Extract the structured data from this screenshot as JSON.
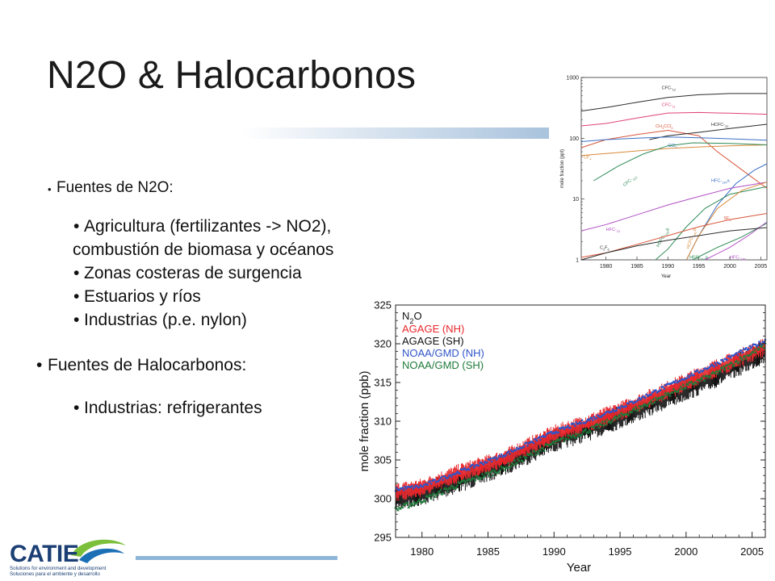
{
  "title": "N2O & Halocarbonos",
  "bullets": {
    "n2o_heading": "Fuentes de N2O:",
    "n2o_items": [
      "Agricultura (fertilizantes -> NO2),",
      "combustión de biomasa y océanos",
      "Zonas costeras de surgencia",
      "Estuarios y ríos",
      "Industrias (p.e. nylon)"
    ],
    "halo_heading": "Fuentes de Halocarbonos:",
    "halo_items": [
      "Industrias: refrigerantes"
    ]
  },
  "logo": {
    "text": "CATIE",
    "tagline_1": "Solutions for environment and development",
    "tagline_2": "Soluciones para el ambiente y desarrollo"
  },
  "chart_data": [
    {
      "type": "line",
      "title": "",
      "xlabel": "Year",
      "ylabel": "mole fraction (ppt)",
      "yscale": "log",
      "xlim": [
        1976,
        2006
      ],
      "ylim": [
        1,
        1000
      ],
      "x_ticks": [
        1980,
        1985,
        1990,
        1995,
        2000,
        2005
      ],
      "y_ticks": [
        1,
        10,
        100,
        1000
      ],
      "series": [
        {
          "name": "CFC-12",
          "color": "#2b2b2b",
          "x": [
            1976,
            1980,
            1985,
            1990,
            1995,
            2000,
            2006
          ],
          "values": [
            280,
            320,
            390,
            470,
            520,
            545,
            545
          ]
        },
        {
          "name": "CFC-11",
          "color": "#e0407a",
          "x": [
            1976,
            1980,
            1985,
            1990,
            1995,
            2000,
            2006
          ],
          "values": [
            160,
            175,
            215,
            260,
            265,
            258,
            248
          ]
        },
        {
          "name": "CH3CCl3",
          "color": "#d9553a",
          "x": [
            1976,
            1980,
            1985,
            1990,
            1995,
            1998,
            2002,
            2006
          ],
          "values": [
            70,
            95,
            115,
            135,
            110,
            60,
            30,
            15
          ]
        },
        {
          "name": "HCFC-22",
          "color": "#2b2b2b",
          "x": [
            1987,
            1990,
            1995,
            2000,
            2006
          ],
          "values": [
            95,
            110,
            125,
            145,
            170
          ]
        },
        {
          "name": "CCl4",
          "color": "#3a6fc4",
          "x": [
            1976,
            1980,
            1985,
            1990,
            1995,
            2000,
            2006
          ],
          "values": [
            88,
            95,
            100,
            105,
            102,
            98,
            93
          ]
        },
        {
          "name": "CF4",
          "color": "#d98a3a",
          "x": [
            1976,
            1980,
            1985,
            1990,
            1995,
            2000,
            2006
          ],
          "values": [
            52,
            56,
            62,
            68,
            72,
            75,
            78
          ]
        },
        {
          "name": "CFC-113",
          "color": "#2e8b57",
          "x": [
            1978,
            1982,
            1986,
            1990,
            1994,
            2000,
            2006
          ],
          "values": [
            20,
            35,
            55,
            75,
            84,
            82,
            78
          ]
        },
        {
          "name": "HFC-134a",
          "color": "#3a6fc4",
          "x": [
            1993,
            1995,
            1998,
            2001,
            2004,
            2006
          ],
          "values": [
            1,
            2.5,
            8,
            18,
            30,
            38
          ]
        },
        {
          "name": "HFC-23",
          "color": "#b04fc4",
          "x": [
            1976,
            1980,
            1985,
            1990,
            1995,
            2000,
            2006
          ],
          "values": [
            3,
            3.8,
            5.5,
            8,
            11,
            15,
            19
          ]
        },
        {
          "name": "HCFC-142b",
          "color": "#2e8b57",
          "x": [
            1988,
            1990,
            1993,
            1996,
            2000,
            2006
          ],
          "values": [
            1,
            1.5,
            3.5,
            7,
            12,
            16
          ]
        },
        {
          "name": "HCFC-141b",
          "color": "#d98a3a",
          "x": [
            1993,
            1995,
            1998,
            2002,
            2006
          ],
          "values": [
            1,
            2.5,
            7,
            14,
            19
          ]
        },
        {
          "name": "SF6",
          "color": "#d9553a",
          "x": [
            1976,
            1980,
            1985,
            1990,
            1995,
            2000,
            2006
          ],
          "values": [
            1.1,
            1.3,
            1.8,
            2.5,
            3.5,
            4.6,
            5.8
          ]
        },
        {
          "name": "HFC-152a",
          "color": "#2e8b57",
          "x": [
            1994,
            1998,
            2002,
            2006
          ],
          "values": [
            1,
            1.6,
            2.4,
            4
          ]
        },
        {
          "name": "HFC-125",
          "color": "#b04fc4",
          "x": [
            1996,
            2000,
            2003,
            2006
          ],
          "values": [
            1,
            1.6,
            2.5,
            4.2
          ]
        },
        {
          "name": "C2F6",
          "color": "#2b2b2b",
          "x": [
            1976,
            1980,
            1985,
            1990,
            1995,
            2000,
            2006
          ],
          "values": [
            1,
            1.3,
            1.7,
            2.1,
            2.5,
            3,
            3.4
          ]
        }
      ]
    },
    {
      "type": "line",
      "title": "",
      "xlabel": "Year",
      "ylabel": "mole fraction (ppb)",
      "xlim": [
        1978,
        2006
      ],
      "ylim": [
        295,
        325
      ],
      "x_ticks": [
        1980,
        1985,
        1990,
        1995,
        2000,
        2005
      ],
      "y_ticks": [
        295,
        300,
        305,
        310,
        315,
        320,
        325
      ],
      "legend_position": "top-left",
      "legend_title": "N2O",
      "series": [
        {
          "name": "AGAGE (NH)",
          "color": "#e8262b",
          "x": [
            1978,
            1980,
            1983,
            1986,
            1990,
            1993,
            1996,
            1999,
            2002,
            2006
          ],
          "values": [
            300.8,
            301.4,
            303.4,
            305.0,
            308.3,
            310.0,
            312.0,
            314.3,
            316.6,
            319.6
          ]
        },
        {
          "name": "AGAGE (SH)",
          "color": "#111111",
          "x": [
            1978,
            1980,
            1983,
            1986,
            1990,
            1993,
            1996,
            1999,
            2002,
            2006
          ],
          "values": [
            300.0,
            300.6,
            302.4,
            304.3,
            307.5,
            309.2,
            311.2,
            313.4,
            315.6,
            319.0
          ]
        },
        {
          "name": "NOAA/GMD (NH)",
          "color": "#2f55c8",
          "x": [
            1978,
            1980,
            1983,
            1986,
            1990,
            1993,
            1996,
            1999,
            2002,
            2006
          ],
          "values": [
            301.2,
            301.6,
            303.6,
            305.5,
            308.6,
            310.4,
            312.5,
            314.9,
            317.2,
            320.4
          ]
        },
        {
          "name": "NOAA/GMD (SH)",
          "color": "#1f7a3a",
          "x": [
            1978,
            1980,
            1983,
            1986,
            1990,
            1993,
            1996,
            1999,
            2002,
            2006
          ],
          "values": [
            298.6,
            299.8,
            302.0,
            303.8,
            307.2,
            309.1,
            311.4,
            313.8,
            316.0,
            319.8
          ]
        }
      ]
    }
  ]
}
